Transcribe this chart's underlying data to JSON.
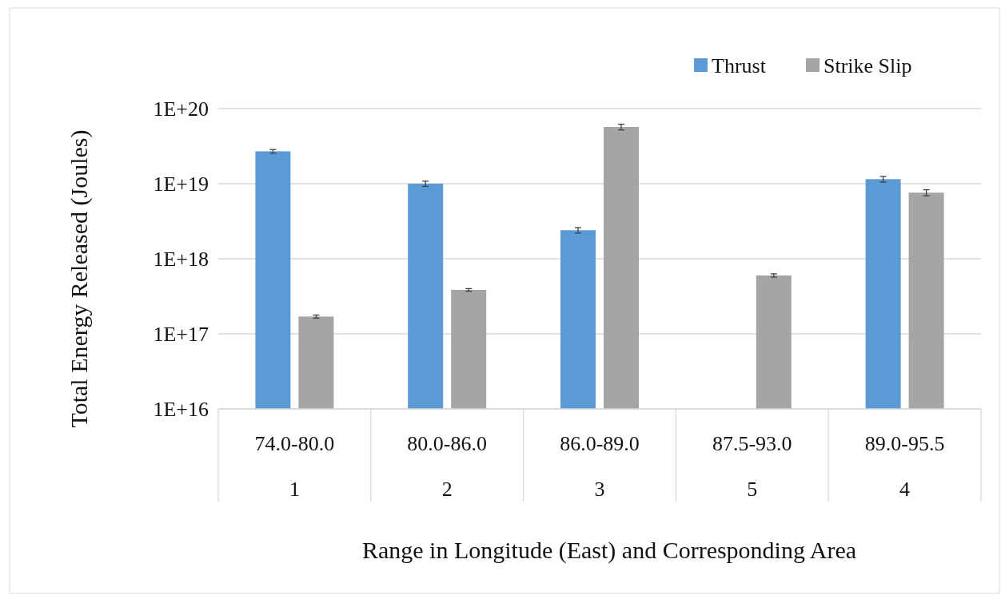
{
  "chart_data": {
    "type": "bar",
    "xlabel": "Range in Longitude (East) and Corresponding Area",
    "ylabel": "Total Energy Released (Joules)",
    "categories": [
      "74.0-80.0\n1",
      "80.0-86.0\n2",
      "86.0-89.0\n3",
      "87.5-93.0\n5",
      "89.0-95.5\n4"
    ],
    "series": [
      {
        "name": "Thrust",
        "color": "#5b9bd5",
        "values": [
          2.7e+19,
          1e+19,
          2.4e+18,
          null,
          1.15e+19
        ],
        "errors": [
          1.5e+18,
          8e+17,
          2e+17,
          null,
          1e+18
        ]
      },
      {
        "name": "Strike Slip",
        "color": "#a5a5a5",
        "values": [
          1.7e+17,
          3.85e+17,
          5.7e+19,
          6e+17,
          7.6e+18
        ],
        "errors": [
          8000000000000000.0,
          1.5e+16,
          5e+18,
          3e+16,
          7e+17
        ]
      }
    ],
    "log": "y",
    "ylim": [
      1e+16,
      1e+20
    ],
    "yticks": [
      {
        "value": 1e+16,
        "label": "1E+16"
      },
      {
        "value": 1e+17,
        "label": "1E+17"
      },
      {
        "value": 1e+18,
        "label": "1E+18"
      },
      {
        "value": 1e+19,
        "label": "1E+19"
      },
      {
        "value": 1e+20,
        "label": "1E+20"
      }
    ],
    "grid": "y",
    "legend": "top right"
  }
}
